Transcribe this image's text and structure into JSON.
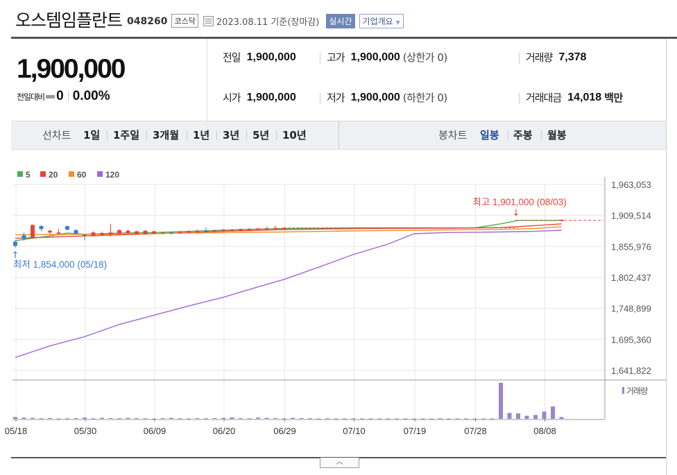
{
  "header": {
    "name": "오스템임플란트",
    "code": "048260",
    "market": "코스닥",
    "date": "2023.08.11",
    "basis": "기준(장마감)",
    "live_button": "실시간",
    "corp_button": "기업개요"
  },
  "price": {
    "current": "1,900,000",
    "change_label": "전일대비",
    "change_value": "0",
    "change_pct": "0.00%"
  },
  "stats": {
    "prev_close_label": "전일",
    "prev_close": "1,900,000",
    "high_label": "고가",
    "high": "1,900,000",
    "high_sub": "(상한가 0)",
    "volume_label": "거래량",
    "volume": "7,378",
    "open_label": "시가",
    "open": "1,900,000",
    "low_label": "저가",
    "low": "1,900,000",
    "low_sub": "(하한가 0)",
    "amount_label": "거래대금",
    "amount": "14,018",
    "amount_unit": "백만"
  },
  "periods": {
    "line_label": "선차트",
    "line_items": [
      "1일",
      "1주일",
      "3개월",
      "1년",
      "3년",
      "5년",
      "10년"
    ],
    "candle_label": "봉차트",
    "candle_items": [
      "일봉",
      "주봉",
      "월봉"
    ],
    "active_candle": "일봉"
  },
  "colors": {
    "up": "#e8433a",
    "down": "#3a7bd5",
    "ma5": "#4caf50",
    "ma20": "#e8433a",
    "ma60": "#f0912a",
    "ma120": "#a066d8",
    "volume": "#9b86c9"
  },
  "chart_data": {
    "type": "candlestick",
    "legend": [
      "5",
      "20",
      "60",
      "120"
    ],
    "y_ticks": [
      "1,963,053",
      "1,909,514",
      "1,855,976",
      "1,802,437",
      "1,748,899",
      "1,695,360",
      "1,641,822"
    ],
    "y_tick_values": [
      1963053,
      1909514,
      1855976,
      1802437,
      1748899,
      1695360,
      1641822
    ],
    "ylim": [
      1625000,
      1975000
    ],
    "x_ticks": [
      "05/18",
      "05/30",
      "06/09",
      "06/20",
      "06/29",
      "07/10",
      "07/19",
      "07/28",
      "08/08"
    ],
    "x_tick_index": [
      0,
      8,
      16,
      24,
      31,
      39,
      46,
      53,
      61
    ],
    "high_annotation": "최고 1,901,000 (08/03)",
    "high_index": 58,
    "high_value": 1901000,
    "low_annotation": "최저 1,854,000 (05/18)",
    "low_index": 0,
    "low_value": 1854000,
    "candles": [
      {
        "i": 0,
        "o": 1864000,
        "c": 1857000,
        "h": 1867000,
        "l": 1854000
      },
      {
        "i": 1,
        "o": 1875000,
        "c": 1869000,
        "h": 1880000,
        "l": 1866000
      },
      {
        "i": 2,
        "o": 1871000,
        "c": 1893000,
        "h": 1894000,
        "l": 1869000
      },
      {
        "i": 3,
        "o": 1891000,
        "c": 1886000,
        "h": 1893000,
        "l": 1882000
      },
      {
        "i": 4,
        "o": 1880000,
        "c": 1883000,
        "h": 1885000,
        "l": 1876000
      },
      {
        "i": 5,
        "o": 1878000,
        "c": 1880000,
        "h": 1886000,
        "l": 1876000
      },
      {
        "i": 6,
        "o": 1891000,
        "c": 1885000,
        "h": 1892000,
        "l": 1883000
      },
      {
        "i": 7,
        "o": 1884000,
        "c": 1878000,
        "h": 1886000,
        "l": 1877000
      },
      {
        "i": 8,
        "o": 1876000,
        "c": 1874000,
        "h": 1877000,
        "l": 1867000
      },
      {
        "i": 9,
        "o": 1875000,
        "c": 1880000,
        "h": 1882000,
        "l": 1873000
      },
      {
        "i": 10,
        "o": 1876000,
        "c": 1879000,
        "h": 1882000,
        "l": 1875000
      },
      {
        "i": 11,
        "o": 1877000,
        "c": 1880000,
        "h": 1895000,
        "l": 1873000
      },
      {
        "i": 12,
        "o": 1878000,
        "c": 1884000,
        "h": 1886000,
        "l": 1876000
      },
      {
        "i": 13,
        "o": 1879000,
        "c": 1883000,
        "h": 1885000,
        "l": 1878000
      },
      {
        "i": 14,
        "o": 1877000,
        "c": 1882000,
        "h": 1883000,
        "l": 1876000
      },
      {
        "i": 15,
        "o": 1877000,
        "c": 1883000,
        "h": 1884000,
        "l": 1876000
      },
      {
        "i": 16,
        "o": 1878000,
        "c": 1882000,
        "h": 1883000,
        "l": 1877000
      },
      {
        "i": 17,
        "o": 1879000,
        "c": 1880000,
        "h": 1881000,
        "l": 1878000
      },
      {
        "i": 18,
        "o": 1880000,
        "c": 1878000,
        "h": 1881000,
        "l": 1877000
      },
      {
        "i": 19,
        "o": 1879000,
        "c": 1881000,
        "h": 1882000,
        "l": 1878000
      },
      {
        "i": 20,
        "o": 1880000,
        "c": 1882000,
        "h": 1883000,
        "l": 1879000
      },
      {
        "i": 21,
        "o": 1880000,
        "c": 1883000,
        "h": 1885000,
        "l": 1879000
      },
      {
        "i": 22,
        "o": 1883000,
        "c": 1881000,
        "h": 1889000,
        "l": 1880000
      },
      {
        "i": 23,
        "o": 1881000,
        "c": 1884000,
        "h": 1885000,
        "l": 1880000
      },
      {
        "i": 24,
        "o": 1882000,
        "c": 1885000,
        "h": 1886000,
        "l": 1881000
      },
      {
        "i": 25,
        "o": 1883000,
        "c": 1885000,
        "h": 1886000,
        "l": 1882000
      },
      {
        "i": 26,
        "o": 1883000,
        "c": 1886000,
        "h": 1887000,
        "l": 1882000
      },
      {
        "i": 27,
        "o": 1884000,
        "c": 1886000,
        "h": 1888000,
        "l": 1883000
      },
      {
        "i": 28,
        "o": 1885000,
        "c": 1887000,
        "h": 1888000,
        "l": 1884000
      },
      {
        "i": 29,
        "o": 1885000,
        "c": 1887000,
        "h": 1890000,
        "l": 1884000
      },
      {
        "i": 30,
        "o": 1886000,
        "c": 1888000,
        "h": 1892000,
        "l": 1885000
      },
      {
        "i": 31,
        "o": 1887000,
        "c": 1888000,
        "h": 1889000,
        "l": 1886000
      }
    ],
    "flat_close": 1888000,
    "flat_from_index": 31,
    "flat_to_index": 58,
    "last_candle_index": 63,
    "series": [
      {
        "name": "5",
        "points": [
          [
            0,
            1866000
          ],
          [
            2,
            1870000
          ],
          [
            4,
            1874000
          ],
          [
            6,
            1879000
          ],
          [
            8,
            1877000
          ],
          [
            12,
            1879000
          ],
          [
            16,
            1880000
          ],
          [
            20,
            1882000
          ],
          [
            24,
            1884000
          ],
          [
            28,
            1886000
          ],
          [
            31,
            1887000
          ],
          [
            40,
            1888000
          ],
          [
            50,
            1888000
          ],
          [
            53,
            1888000
          ],
          [
            56,
            1895000
          ],
          [
            58,
            1901000
          ],
          [
            63,
            1901000
          ]
        ]
      },
      {
        "name": "20",
        "points": [
          [
            0,
            1870000
          ],
          [
            8,
            1874000
          ],
          [
            16,
            1878000
          ],
          [
            24,
            1882000
          ],
          [
            31,
            1885000
          ],
          [
            40,
            1887000
          ],
          [
            50,
            1887500
          ],
          [
            56,
            1888500
          ],
          [
            60,
            1892000
          ],
          [
            63,
            1895000
          ]
        ]
      },
      {
        "name": "60",
        "points": [
          [
            0,
            1876000
          ],
          [
            10,
            1877000
          ],
          [
            20,
            1879000
          ],
          [
            31,
            1881000
          ],
          [
            40,
            1883000
          ],
          [
            50,
            1884500
          ],
          [
            56,
            1885500
          ],
          [
            60,
            1887000
          ],
          [
            63,
            1890000
          ]
        ]
      },
      {
        "name": "120",
        "points": [
          [
            0,
            1664000
          ],
          [
            4,
            1684000
          ],
          [
            8,
            1700000
          ],
          [
            12,
            1721000
          ],
          [
            16,
            1737000
          ],
          [
            20,
            1753000
          ],
          [
            24,
            1768000
          ],
          [
            28,
            1786000
          ],
          [
            31,
            1799000
          ],
          [
            35,
            1820000
          ],
          [
            39,
            1842000
          ],
          [
            43,
            1860000
          ],
          [
            46,
            1878000
          ],
          [
            50,
            1880000
          ],
          [
            56,
            1881000
          ],
          [
            60,
            1882000
          ],
          [
            63,
            1884000
          ]
        ]
      }
    ],
    "volume_label": "거래량",
    "volume": [
      7,
      5,
      4,
      2,
      3,
      1,
      2,
      3,
      5,
      2,
      4,
      3,
      2,
      4,
      3,
      2,
      1,
      3,
      4,
      2,
      1,
      3,
      2,
      3,
      4,
      6,
      3,
      2,
      5,
      4,
      3,
      2,
      4,
      3,
      2,
      1,
      2,
      1,
      1,
      2,
      1,
      1,
      1,
      1,
      1,
      1,
      1,
      1,
      1,
      2,
      1,
      1,
      1,
      1,
      1,
      1,
      140,
      23,
      21,
      12,
      15,
      28,
      48,
      7
    ],
    "volume_max": 140
  }
}
